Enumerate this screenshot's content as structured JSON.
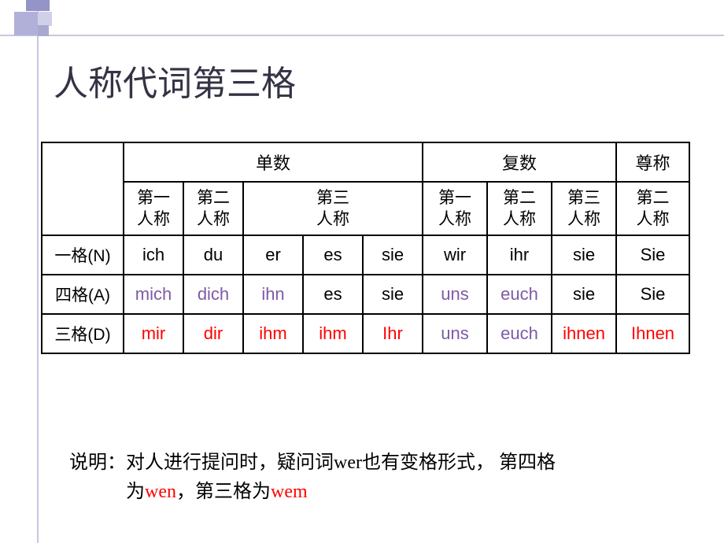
{
  "title": "人称代词第三格",
  "colors": {
    "black": "#000000",
    "purple": "#7d5ba6",
    "red": "#ff0000"
  },
  "header": {
    "groups": [
      "单数",
      "复数",
      "尊称"
    ],
    "sub": {
      "g1": [
        "第一\n人称",
        "第二\n人称",
        "第三\n人称"
      ],
      "g2": [
        "第一\n人称",
        "第二\n人称",
        "第三\n人称"
      ],
      "g3": [
        "第二\n人称"
      ]
    }
  },
  "rows": [
    {
      "label": "一格(N)",
      "cells": [
        {
          "t": "ich",
          "c": "black"
        },
        {
          "t": "du",
          "c": "black"
        },
        {
          "t": "er",
          "c": "black"
        },
        {
          "t": "es",
          "c": "black"
        },
        {
          "t": "sie",
          "c": "black"
        },
        {
          "t": "wir",
          "c": "black"
        },
        {
          "t": "ihr",
          "c": "black"
        },
        {
          "t": "sie",
          "c": "black"
        },
        {
          "t": "Sie",
          "c": "black"
        }
      ]
    },
    {
      "label": "四格(A)",
      "cells": [
        {
          "t": "mich",
          "c": "purple"
        },
        {
          "t": "dich",
          "c": "purple"
        },
        {
          "t": "ihn",
          "c": "purple"
        },
        {
          "t": "es",
          "c": "black"
        },
        {
          "t": "sie",
          "c": "black"
        },
        {
          "t": "uns",
          "c": "purple"
        },
        {
          "t": "euch",
          "c": "purple"
        },
        {
          "t": "sie",
          "c": "black"
        },
        {
          "t": "Sie",
          "c": "black"
        }
      ]
    },
    {
      "label": "三格(D)",
      "cells": [
        {
          "t": "mir",
          "c": "red"
        },
        {
          "t": "dir",
          "c": "red"
        },
        {
          "t": "ihm",
          "c": "red"
        },
        {
          "t": "ihm",
          "c": "red"
        },
        {
          "t": "Ihr",
          "c": "red"
        },
        {
          "t": "uns",
          "c": "purple"
        },
        {
          "t": "euch",
          "c": "purple"
        },
        {
          "t": "ihnen",
          "c": "red"
        },
        {
          "t": "Ihnen",
          "c": "red"
        }
      ]
    }
  ],
  "note": {
    "line1_pre": "说明：对人进行提问时，疑问词wer也有变格形式， 第四格",
    "line2_pre": "为",
    "wen": "wen",
    "sep": "，第三格为",
    "wem": "wem"
  },
  "col_widths": [
    "104",
    "76",
    "76",
    "76",
    "76",
    "76",
    "82",
    "82",
    "82",
    "93"
  ]
}
